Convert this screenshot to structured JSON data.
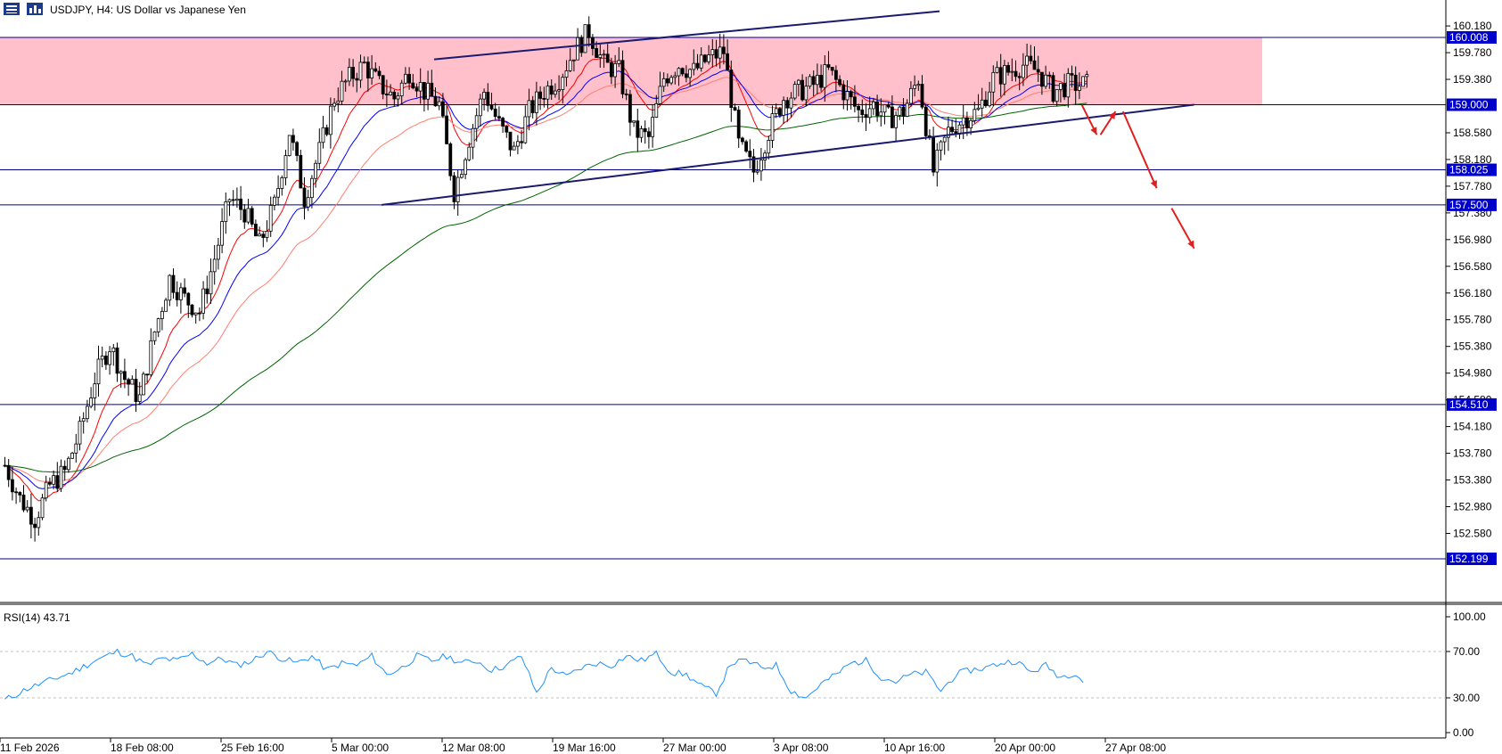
{
  "header": {
    "symbol_label": "USDJPY, H4:  US Dollar vs Japanese Yen",
    "icon_menu": "hamburger-menu-icon",
    "icon_chart": "chart-bars-icon"
  },
  "rsi_panel": {
    "label": "RSI(14) 43.71"
  },
  "colors": {
    "resistance_zone": "#ffc0cb",
    "horizontal_line": "#00008b",
    "tag_bg": "#0000cd",
    "trendline": "#1a1a6e",
    "arrow": "#e02020",
    "ema_fast": "#ff0000",
    "ema_slow_salmon": "#ff7f70",
    "ma_blue": "#0000ff",
    "ma_green": "#006400",
    "rsi_line": "#1e90ff",
    "candle_body": "#000000"
  },
  "chart_data": {
    "type": "candlestick",
    "title": "USDJPY, H4:  US Dollar vs Japanese Yen",
    "ylim": [
      152.199,
      160.4
    ],
    "y_ticks": [
      "160.180",
      "159.780",
      "159.380",
      "158.580",
      "158.180",
      "157.780",
      "157.380",
      "156.980",
      "156.580",
      "156.180",
      "155.780",
      "155.380",
      "154.980",
      "154.580",
      "154.180",
      "153.780",
      "153.380",
      "152.980",
      "152.580"
    ],
    "x_ticks": [
      "11 Feb 2026",
      "18 Feb 08:00",
      "25 Feb 16:00",
      "5 Mar 00:00",
      "12 Mar 08:00",
      "19 Mar 16:00",
      "27 Mar 00:00",
      "3 Apr 08:00",
      "10 Apr 16:00",
      "20 Apr 00:00",
      "27 Apr 08:00"
    ],
    "horizontal_levels": [
      {
        "value": 160.008,
        "label": "160.008"
      },
      {
        "value": 159.0,
        "label": "159.000"
      },
      {
        "value": 158.025,
        "label": "158.025"
      },
      {
        "value": 157.5,
        "label": "157.500"
      },
      {
        "value": 154.51,
        "label": "154.510"
      },
      {
        "value": 152.199,
        "label": "152.199"
      }
    ],
    "resistance_zone": {
      "from": 159.0,
      "to": 160.008
    },
    "close_path": [
      [
        0,
        153.6
      ],
      [
        4,
        153.1
      ],
      [
        8,
        152.8
      ],
      [
        12,
        153.3
      ],
      [
        16,
        153.5
      ],
      [
        20,
        154.1
      ],
      [
        24,
        154.9
      ],
      [
        28,
        155.4
      ],
      [
        32,
        154.9
      ],
      [
        36,
        154.6
      ],
      [
        40,
        155.6
      ],
      [
        44,
        156.4
      ],
      [
        48,
        156.1
      ],
      [
        52,
        155.9
      ],
      [
        56,
        156.7
      ],
      [
        60,
        157.6
      ],
      [
        64,
        157.4
      ],
      [
        68,
        156.9
      ],
      [
        72,
        157.5
      ],
      [
        76,
        158.6
      ],
      [
        80,
        157.6
      ],
      [
        84,
        158.3
      ],
      [
        88,
        159.1
      ],
      [
        92,
        159.4
      ],
      [
        96,
        159.6
      ],
      [
        100,
        159.3
      ],
      [
        104,
        159.1
      ],
      [
        108,
        159.5
      ],
      [
        112,
        159.2
      ],
      [
        116,
        159.0
      ],
      [
        120,
        157.7
      ],
      [
        124,
        158.5
      ],
      [
        128,
        159.2
      ],
      [
        132,
        158.7
      ],
      [
        136,
        158.3
      ],
      [
        140,
        158.9
      ],
      [
        144,
        159.2
      ],
      [
        148,
        159.4
      ],
      [
        152,
        159.8
      ],
      [
        156,
        160.1
      ],
      [
        160,
        159.6
      ],
      [
        164,
        159.5
      ],
      [
        168,
        158.6
      ],
      [
        172,
        158.5
      ],
      [
        176,
        159.4
      ],
      [
        180,
        159.6
      ],
      [
        184,
        159.5
      ],
      [
        188,
        159.7
      ],
      [
        192,
        159.8
      ],
      [
        196,
        158.4
      ],
      [
        200,
        158.0
      ],
      [
        204,
        158.6
      ],
      [
        208,
        159.1
      ],
      [
        212,
        159.2
      ],
      [
        216,
        159.3
      ],
      [
        220,
        159.5
      ],
      [
        224,
        159.2
      ],
      [
        228,
        158.9
      ],
      [
        232,
        159.0
      ],
      [
        236,
        158.8
      ],
      [
        240,
        158.9
      ],
      [
        244,
        159.4
      ],
      [
        248,
        158.0
      ],
      [
        252,
        158.6
      ],
      [
        256,
        158.8
      ],
      [
        260,
        158.9
      ],
      [
        264,
        159.4
      ],
      [
        268,
        159.5
      ],
      [
        272,
        159.6
      ],
      [
        276,
        159.5
      ],
      [
        280,
        159.2
      ],
      [
        284,
        159.3
      ]
    ],
    "bar_count": 290,
    "moving_averages": [
      {
        "name": "EMA fast",
        "color": "#ff0000"
      },
      {
        "name": "MA blue",
        "color": "#0000ff"
      },
      {
        "name": "EMA salmon",
        "color": "#ff7f70"
      },
      {
        "name": "MA 200",
        "color": "#006400"
      }
    ],
    "trendlines": [
      {
        "from": [
          115,
          159.68
        ],
        "to": [
          250,
          160.4
        ]
      },
      {
        "from": [
          101,
          157.5
        ],
        "to": [
          318,
          159.0
        ]
      }
    ],
    "arrows": [
      {
        "from": [
          288,
          159.0
        ],
        "to": [
          292,
          158.55
        ]
      },
      {
        "from": [
          293,
          158.55
        ],
        "to": [
          297,
          158.9
        ]
      },
      {
        "from": [
          299,
          158.9
        ],
        "to": [
          308,
          157.75
        ]
      },
      {
        "from": [
          312,
          157.45
        ],
        "to": [
          318,
          156.85
        ]
      }
    ],
    "rsi": {
      "label": "RSI(14) 43.71",
      "ylim": [
        0,
        100
      ],
      "y_ticks": [
        "100.00",
        "70.00",
        "30.00",
        "0.00"
      ],
      "levels": [
        70,
        30
      ],
      "value": 43.71,
      "path": [
        [
          0,
          28
        ],
        [
          6,
          38
        ],
        [
          12,
          45
        ],
        [
          18,
          52
        ],
        [
          24,
          62
        ],
        [
          30,
          70
        ],
        [
          34,
          66
        ],
        [
          38,
          58
        ],
        [
          42,
          64
        ],
        [
          46,
          62
        ],
        [
          50,
          68
        ],
        [
          54,
          60
        ],
        [
          58,
          64
        ],
        [
          62,
          58
        ],
        [
          66,
          62
        ],
        [
          70,
          70
        ],
        [
          74,
          64
        ],
        [
          78,
          60
        ],
        [
          82,
          66
        ],
        [
          86,
          54
        ],
        [
          90,
          60
        ],
        [
          94,
          58
        ],
        [
          98,
          66
        ],
        [
          102,
          50
        ],
        [
          106,
          56
        ],
        [
          110,
          66
        ],
        [
          114,
          62
        ],
        [
          118,
          66
        ],
        [
          122,
          60
        ],
        [
          126,
          62
        ],
        [
          130,
          54
        ],
        [
          134,
          58
        ],
        [
          138,
          66
        ],
        [
          142,
          34
        ],
        [
          146,
          56
        ],
        [
          150,
          48
        ],
        [
          154,
          56
        ],
        [
          158,
          60
        ],
        [
          162,
          58
        ],
        [
          166,
          66
        ],
        [
          170,
          62
        ],
        [
          174,
          68
        ],
        [
          178,
          52
        ],
        [
          182,
          50
        ],
        [
          186,
          40
        ],
        [
          190,
          34
        ],
        [
          194,
          60
        ],
        [
          198,
          62
        ],
        [
          202,
          56
        ],
        [
          206,
          58
        ],
        [
          210,
          36
        ],
        [
          214,
          30
        ],
        [
          218,
          42
        ],
        [
          222,
          50
        ],
        [
          226,
          60
        ],
        [
          230,
          62
        ],
        [
          234,
          48
        ],
        [
          238,
          44
        ],
        [
          242,
          50
        ],
        [
          246,
          52
        ],
        [
          250,
          36
        ],
        [
          254,
          50
        ],
        [
          258,
          54
        ],
        [
          262,
          56
        ],
        [
          266,
          60
        ],
        [
          270,
          62
        ],
        [
          274,
          52
        ],
        [
          278,
          58
        ],
        [
          282,
          48
        ],
        [
          286,
          52
        ],
        [
          288,
          44
        ]
      ]
    }
  }
}
